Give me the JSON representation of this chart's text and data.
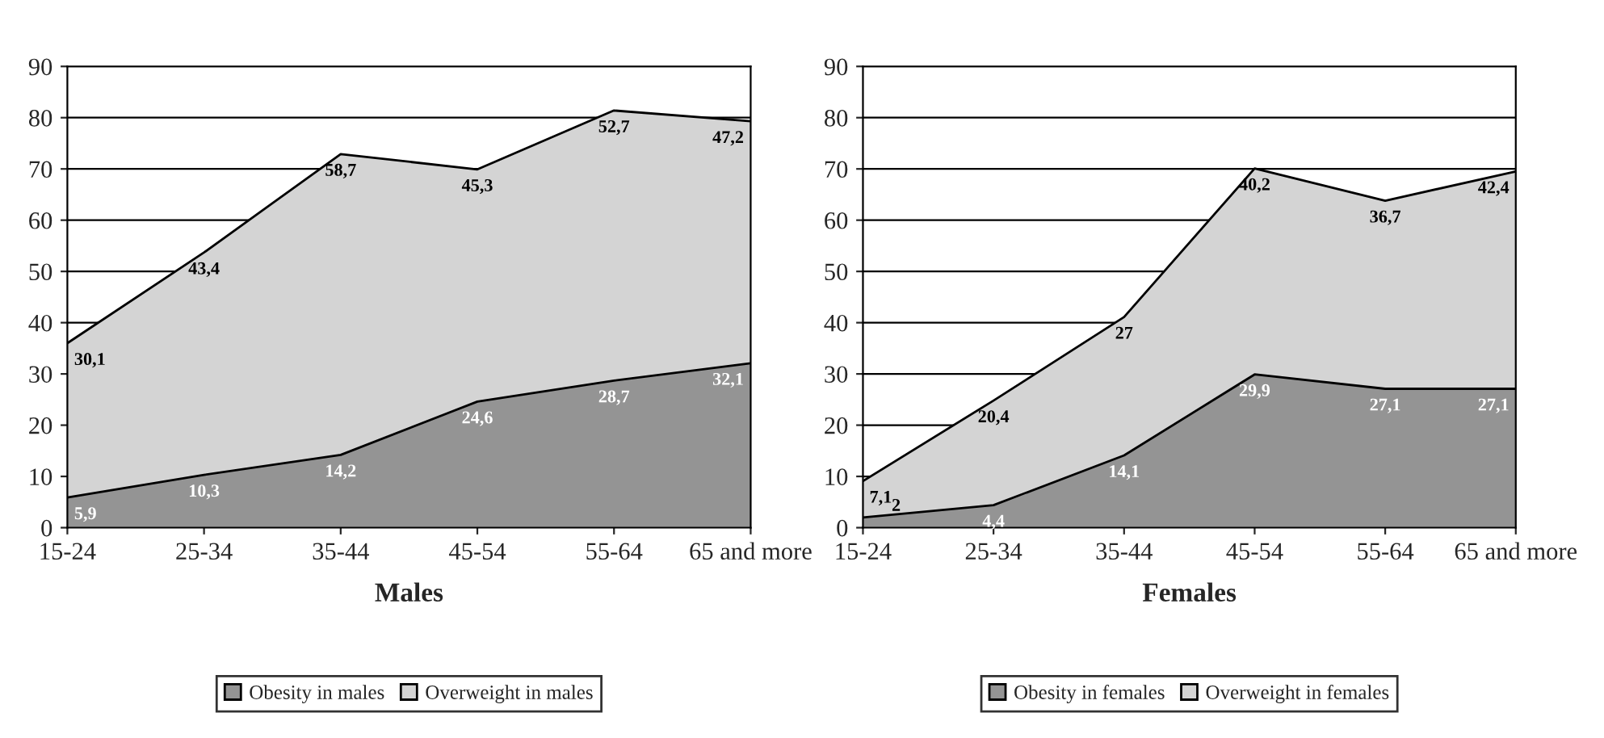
{
  "chart_data": [
    {
      "type": "area",
      "stacked": true,
      "xlabel": "Males",
      "categories": [
        "15-24",
        "25-34",
        "35-44",
        "45-54",
        "55-64",
        "65 and more"
      ],
      "ylim": [
        0,
        90
      ],
      "yticks": [
        0,
        10,
        20,
        30,
        40,
        50,
        60,
        70,
        80,
        90
      ],
      "grid": "y",
      "legend": "bottom",
      "series": [
        {
          "name": "Obesity in males",
          "color": "#949494",
          "values": [
            5.9,
            10.3,
            14.2,
            24.6,
            28.7,
            32.1
          ],
          "value_labels": [
            "5,9",
            "10,3",
            "14,2",
            "24,6",
            "28,7",
            "32,1"
          ]
        },
        {
          "name": "Overweight in males",
          "color": "#d4d4d4",
          "values": [
            30.1,
            43.4,
            58.7,
            45.3,
            52.7,
            47.2
          ],
          "value_labels": [
            "30,1",
            "43,4",
            "58,7",
            "45,3",
            "52,7",
            "47,2"
          ]
        }
      ]
    },
    {
      "type": "area",
      "stacked": true,
      "xlabel": "Females",
      "categories": [
        "15-24",
        "25-34",
        "35-44",
        "45-54",
        "55-64",
        "65 and more"
      ],
      "ylim": [
        0,
        90
      ],
      "yticks": [
        0,
        10,
        20,
        30,
        40,
        50,
        60,
        70,
        80,
        90
      ],
      "grid": "y",
      "legend": "bottom",
      "series": [
        {
          "name": "Obesity in females",
          "color": "#949494",
          "values": [
            2,
            4.4,
            14.1,
            29.9,
            27.1,
            27.1
          ],
          "value_labels": [
            "2",
            "4,4",
            "14,1",
            "29,9",
            "27,1",
            "27,1"
          ]
        },
        {
          "name": "Overweight in females",
          "color": "#d4d4d4",
          "values": [
            7.1,
            20.4,
            27,
            40.2,
            36.7,
            42.4
          ],
          "value_labels": [
            "7,1",
            "20,4",
            "27",
            "40,2",
            "36,7",
            "42,4"
          ]
        }
      ]
    }
  ]
}
